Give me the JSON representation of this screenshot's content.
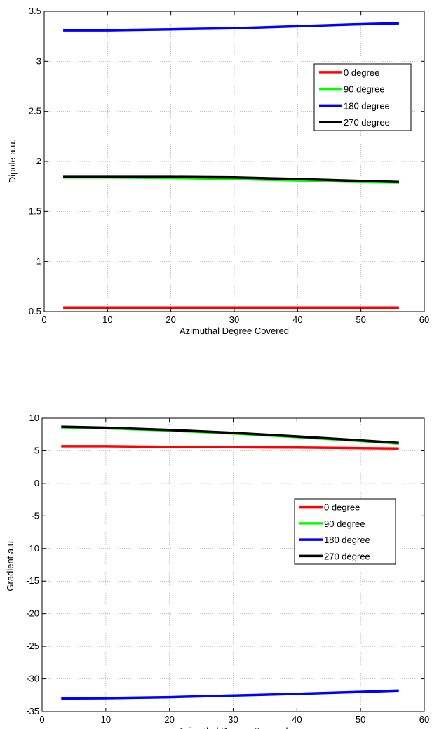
{
  "chart_data": [
    {
      "type": "line",
      "title": "",
      "xlabel": "Azimuthal Degree Covered",
      "ylabel": "Dipole a.u.",
      "xlim": [
        0,
        60
      ],
      "ylim": [
        0.5,
        3.5
      ],
      "xticks": [
        0,
        10,
        20,
        30,
        40,
        50,
        60
      ],
      "yticks": [
        0.5,
        1,
        1.5,
        2,
        2.5,
        3,
        3.5
      ],
      "grid": true,
      "legend_position": "upper-right",
      "series": [
        {
          "name": "0 degree",
          "color": "#ff0000",
          "x": [
            3,
            10,
            20,
            30,
            40,
            50,
            56
          ],
          "y": [
            0.54,
            0.54,
            0.54,
            0.54,
            0.54,
            0.54,
            0.54
          ]
        },
        {
          "name": "90 degree",
          "color": "#00ff00",
          "x": [
            3,
            10,
            20,
            30,
            40,
            50,
            56
          ],
          "y": [
            1.84,
            1.84,
            1.835,
            1.825,
            1.81,
            1.795,
            1.79
          ]
        },
        {
          "name": "180 degree",
          "color": "#0000ff",
          "x": [
            3,
            10,
            20,
            30,
            40,
            50,
            56
          ],
          "y": [
            3.31,
            3.31,
            3.32,
            3.33,
            3.35,
            3.37,
            3.38
          ]
        },
        {
          "name": "270 degree",
          "color": "#000000",
          "x": [
            3,
            10,
            20,
            30,
            40,
            50,
            56
          ],
          "y": [
            1.845,
            1.845,
            1.845,
            1.84,
            1.825,
            1.805,
            1.795
          ]
        }
      ]
    },
    {
      "type": "line",
      "title": "",
      "xlabel": "Azimuthal Degree Covered",
      "ylabel": "Gradient a.u.",
      "xlim": [
        0,
        60
      ],
      "ylim": [
        -35,
        10
      ],
      "xticks": [
        0,
        10,
        20,
        30,
        40,
        50,
        60
      ],
      "yticks": [
        -35,
        -30,
        -25,
        -20,
        -15,
        -10,
        -5,
        0,
        5,
        10
      ],
      "grid": true,
      "legend_position": "right",
      "series": [
        {
          "name": "0 degree",
          "color": "#ff0000",
          "x": [
            3,
            10,
            20,
            30,
            40,
            50,
            56
          ],
          "y": [
            5.7,
            5.7,
            5.6,
            5.55,
            5.5,
            5.4,
            5.35
          ]
        },
        {
          "name": "90 degree",
          "color": "#00ff00",
          "x": [
            3,
            10,
            20,
            30,
            40,
            50,
            56
          ],
          "y": [
            8.6,
            8.45,
            8.1,
            7.65,
            7.1,
            6.5,
            6.1
          ]
        },
        {
          "name": "180 degree",
          "color": "#0000ff",
          "x": [
            3,
            10,
            20,
            30,
            40,
            50,
            56
          ],
          "y": [
            -33.0,
            -32.95,
            -32.8,
            -32.55,
            -32.3,
            -32.0,
            -31.8
          ]
        },
        {
          "name": "270 degree",
          "color": "#000000",
          "x": [
            3,
            10,
            20,
            30,
            40,
            50,
            56
          ],
          "y": [
            8.7,
            8.55,
            8.2,
            7.75,
            7.2,
            6.6,
            6.2
          ]
        }
      ]
    }
  ]
}
